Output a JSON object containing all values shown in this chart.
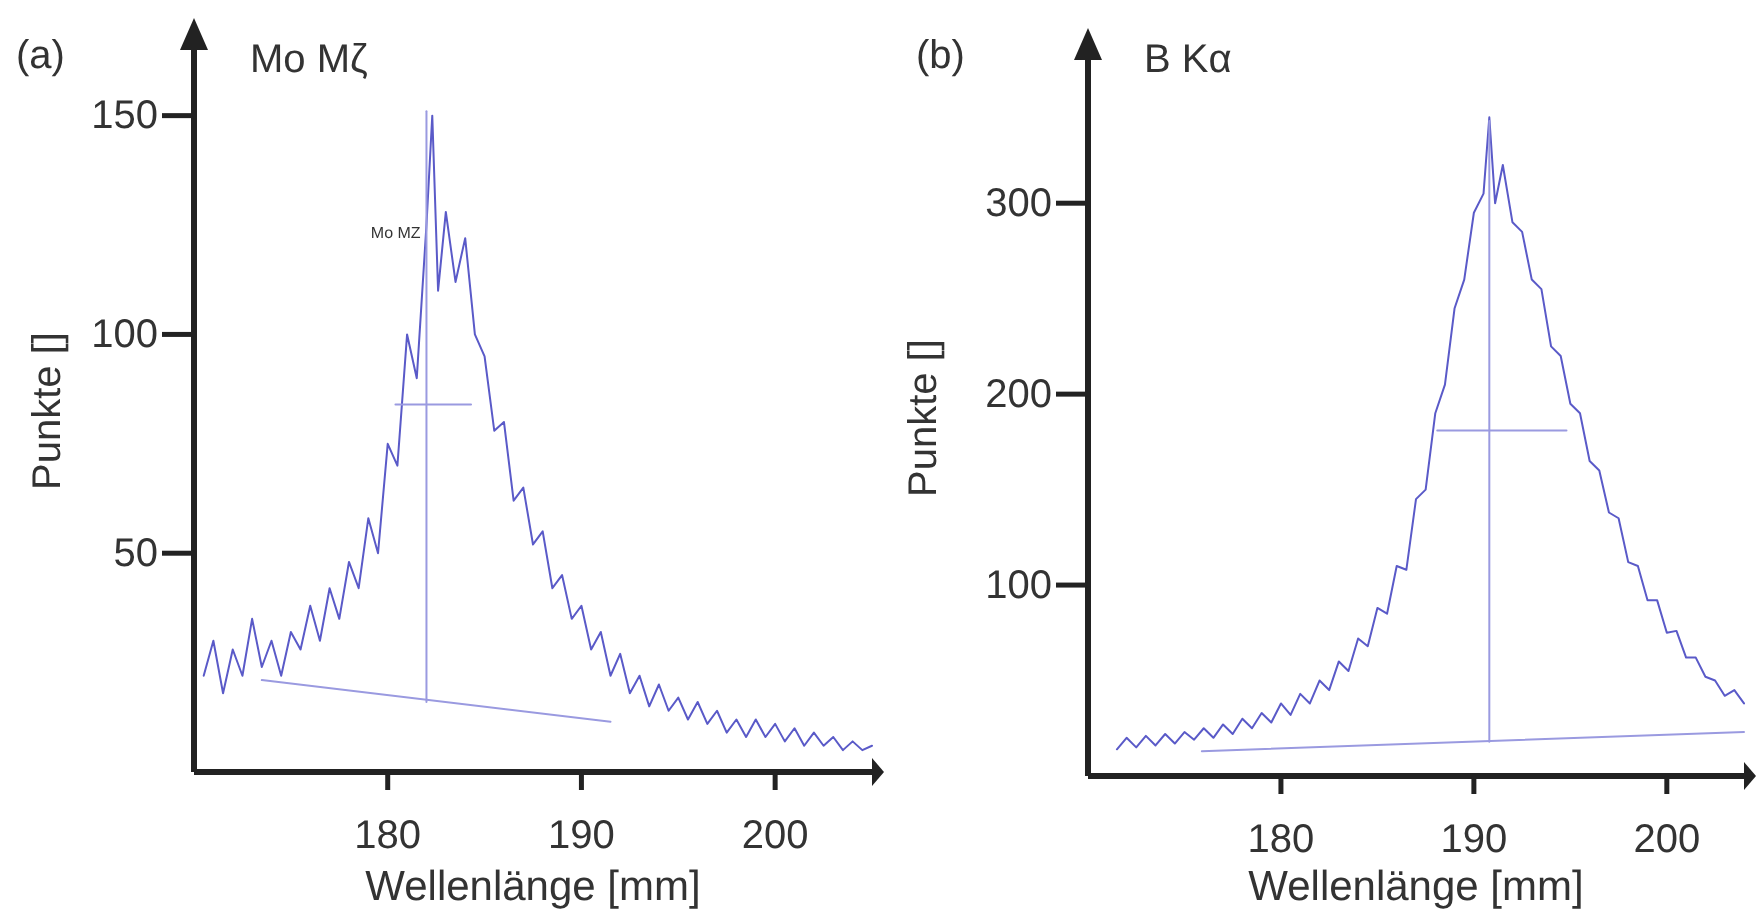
{
  "chart_data": [
    {
      "type": "line",
      "title": "Mo Mζ",
      "xlabel": "Wellenlänge [mm]",
      "ylabel": "Punkte []",
      "annotations": [
        "(a)",
        {
          "text": "Mo MZ",
          "x": 181.7,
          "y": 122
        }
      ],
      "xlim": [
        170,
        205
      ],
      "xticks": [
        180,
        190,
        200
      ],
      "ylim": [
        0,
        165
      ],
      "yticks": [
        50,
        100,
        150
      ],
      "grid": false,
      "marker": "none",
      "line_style": "solid",
      "series": [
        {
          "color": "#5a5ac8",
          "x": [
            170.5,
            171,
            171.5,
            172,
            172.5,
            173,
            173.5,
            174,
            174.5,
            175,
            175.5,
            176,
            176.5,
            177,
            177.5,
            178,
            178.5,
            179,
            179.5,
            180,
            180.5,
            181,
            181.5,
            182,
            182.3,
            182.6,
            183,
            183.5,
            184,
            184.5,
            185,
            185.5,
            186,
            186.5,
            187,
            187.5,
            188,
            188.5,
            189,
            189.5,
            190,
            190.5,
            191,
            191.5,
            192,
            192.5,
            193,
            193.5,
            194,
            194.5,
            195,
            195.5,
            196,
            196.5,
            197,
            197.5,
            198,
            198.5,
            199,
            199.5,
            200,
            200.5,
            201,
            201.5,
            202,
            202.5,
            203,
            203.5,
            204,
            204.5,
            205
          ],
          "values": [
            22,
            30,
            18,
            28,
            22,
            35,
            24,
            30,
            22,
            32,
            28,
            38,
            30,
            42,
            35,
            48,
            42,
            58,
            50,
            75,
            70,
            100,
            90,
            125,
            150,
            110,
            128,
            112,
            122,
            100,
            95,
            78,
            80,
            62,
            65,
            52,
            55,
            42,
            45,
            35,
            38,
            28,
            32,
            22,
            27,
            18,
            22,
            15,
            20,
            14,
            17,
            12,
            16,
            11,
            14,
            9,
            12,
            8,
            12,
            8,
            11,
            7,
            10,
            6,
            9,
            6,
            8,
            5,
            7,
            5,
            6
          ]
        },
        {
          "color": "#9a9ae0",
          "x": [
            173.5,
            191.5
          ],
          "values": [
            21,
            11.5
          ]
        },
        {
          "color": "#9a9ae0",
          "x": [
            182,
            182
          ],
          "values": [
            16,
            151
          ]
        },
        {
          "color": "#9a9ae0",
          "x": [
            180.4,
            184.3
          ],
          "values": [
            84,
            84
          ]
        }
      ]
    },
    {
      "type": "line",
      "title": "B Kα",
      "xlabel": "Wellenlänge [mm]",
      "ylabel": "Punkte []",
      "annotations": [
        "(b)"
      ],
      "xlim": [
        170,
        204
      ],
      "xticks": [
        180,
        190,
        200
      ],
      "ylim": [
        0,
        375
      ],
      "yticks": [
        100,
        200,
        300
      ],
      "grid": false,
      "marker": "none",
      "line_style": "solid",
      "series": [
        {
          "color": "#5a5ac8",
          "x": [
            171.5,
            172,
            172.5,
            173,
            173.5,
            174,
            174.5,
            175,
            175.5,
            176,
            176.5,
            177,
            177.5,
            178,
            178.5,
            179,
            179.5,
            180,
            180.5,
            181,
            181.5,
            182,
            182.5,
            183,
            183.5,
            184,
            184.5,
            185,
            185.5,
            186,
            186.5,
            187,
            187.5,
            188,
            188.5,
            189,
            189.5,
            190,
            190.5,
            190.8,
            191.1,
            191.5,
            192,
            192.5,
            193,
            193.5,
            194,
            194.5,
            195,
            195.5,
            196,
            196.5,
            197,
            197.5,
            198,
            198.5,
            199,
            199.5,
            200,
            200.5,
            201,
            201.5,
            202,
            202.5,
            203,
            203.5,
            204
          ],
          "values": [
            14,
            20,
            15,
            21,
            16,
            22,
            17,
            23,
            19,
            25,
            20,
            27,
            22,
            30,
            25,
            33,
            28,
            38,
            32,
            43,
            38,
            50,
            45,
            60,
            55,
            72,
            68,
            88,
            85,
            110,
            108,
            145,
            150,
            190,
            205,
            245,
            260,
            295,
            305,
            345,
            300,
            320,
            290,
            285,
            260,
            255,
            225,
            220,
            195,
            190,
            165,
            160,
            138,
            135,
            112,
            110,
            92,
            92,
            75,
            76,
            62,
            62,
            52,
            50,
            42,
            45,
            38
          ]
        },
        {
          "color": "#9a9ae0",
          "x": [
            175.9,
            204
          ],
          "values": [
            13,
            23
          ]
        },
        {
          "color": "#9a9ae0",
          "x": [
            190.8,
            190.8
          ],
          "values": [
            18,
            343
          ]
        },
        {
          "color": "#9a9ae0",
          "x": [
            188.1,
            194.8
          ],
          "values": [
            181,
            181
          ]
        }
      ]
    }
  ]
}
